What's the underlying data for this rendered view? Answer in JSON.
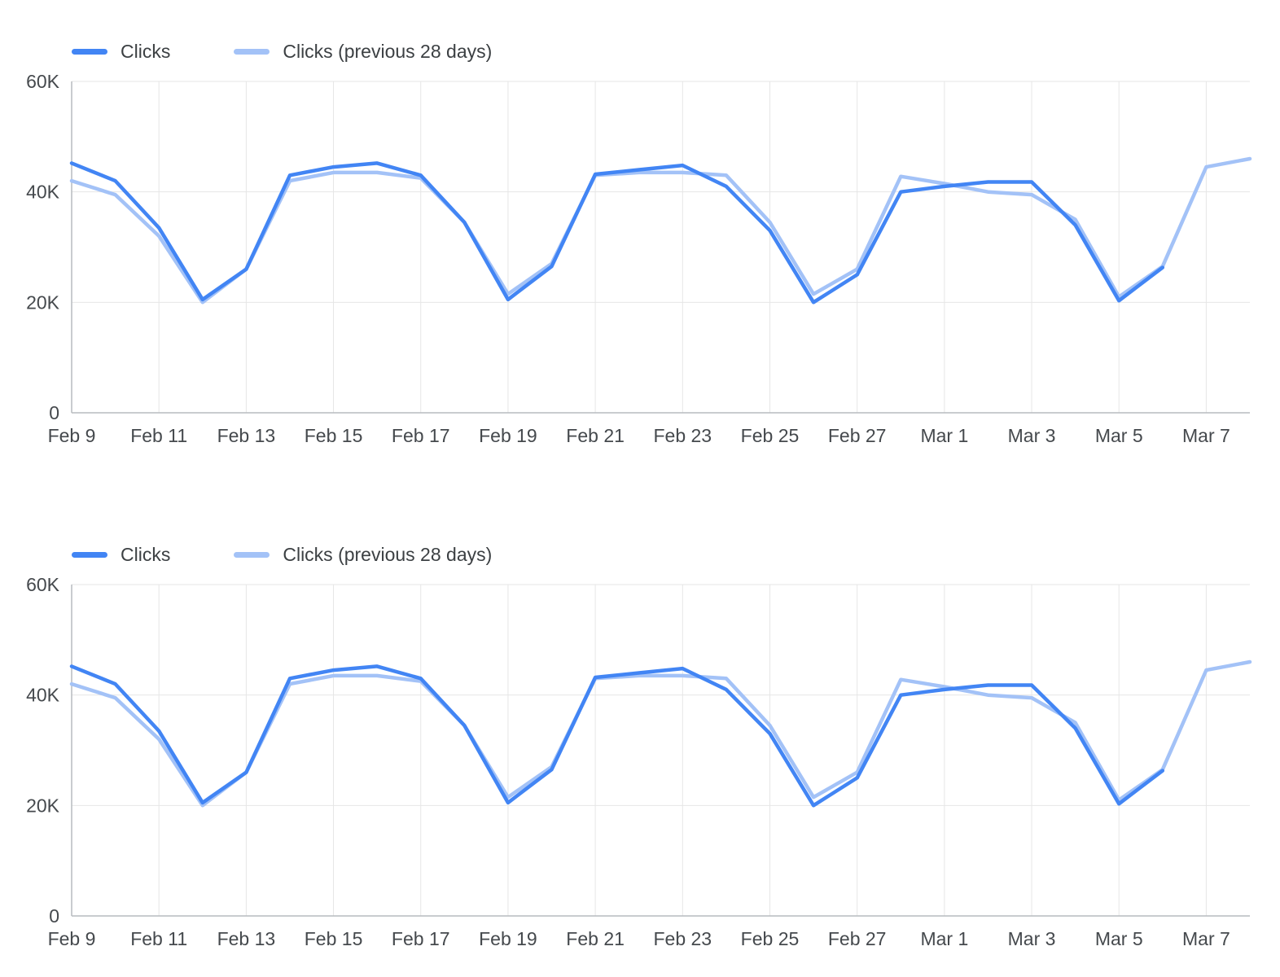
{
  "colors": {
    "clicks": "#4285f4",
    "clicks_previous": "#a3c2f7",
    "grid": "#e6e6e6",
    "axis": "#b7bbbf",
    "axis_text": "#45494d",
    "legend_text": "#3c4043",
    "background": "#ffffff"
  },
  "chart_data": [
    {
      "type": "line",
      "title": "",
      "xlabel": "",
      "ylabel": "",
      "ylim": [
        0,
        60000
      ],
      "grid": true,
      "legend_position": "top-left",
      "x_tick_every": 2,
      "yticks": [
        {
          "value": 0,
          "label": "0"
        },
        {
          "value": 20000,
          "label": "20K"
        },
        {
          "value": 40000,
          "label": "40K"
        },
        {
          "value": 60000,
          "label": "60K"
        }
      ],
      "x": [
        "Feb 9",
        "Feb 10",
        "Feb 11",
        "Feb 12",
        "Feb 13",
        "Feb 14",
        "Feb 15",
        "Feb 16",
        "Feb 17",
        "Feb 18",
        "Feb 19",
        "Feb 20",
        "Feb 21",
        "Feb 22",
        "Feb 23",
        "Feb 24",
        "Feb 25",
        "Feb 26",
        "Feb 27",
        "Feb 28",
        "Mar 1",
        "Mar 2",
        "Mar 3",
        "Mar 4",
        "Mar 5",
        "Mar 6",
        "Mar 7",
        "Mar 8"
      ],
      "series": [
        {
          "key": "clicks",
          "name": "Clicks",
          "color": "#4285f4",
          "values": [
            45200,
            42000,
            33500,
            20500,
            26000,
            43000,
            44500,
            45200,
            43000,
            34500,
            20500,
            26500,
            43200,
            44000,
            44800,
            41000,
            33000,
            20000,
            25000,
            40000,
            41000,
            41800,
            41800,
            34000,
            20300,
            26300,
            null,
            null
          ]
        },
        {
          "key": "clicks-previous",
          "name": "Clicks (previous 28 days)",
          "color": "#a3c2f7",
          "values": [
            42000,
            39500,
            32000,
            20000,
            26000,
            42000,
            43500,
            43500,
            42500,
            34500,
            21500,
            27000,
            43000,
            43500,
            43500,
            43000,
            34500,
            21500,
            26000,
            42800,
            41500,
            40000,
            39500,
            35000,
            21000,
            26500,
            44500,
            46000
          ]
        }
      ]
    },
    {
      "type": "line",
      "title": "",
      "xlabel": "",
      "ylabel": "",
      "ylim": [
        0,
        60000
      ],
      "grid": true,
      "legend_position": "top-left",
      "x_tick_every": 2,
      "yticks": [
        {
          "value": 0,
          "label": "0"
        },
        {
          "value": 20000,
          "label": "20K"
        },
        {
          "value": 40000,
          "label": "40K"
        },
        {
          "value": 60000,
          "label": "60K"
        }
      ],
      "x": [
        "Feb 9",
        "Feb 10",
        "Feb 11",
        "Feb 12",
        "Feb 13",
        "Feb 14",
        "Feb 15",
        "Feb 16",
        "Feb 17",
        "Feb 18",
        "Feb 19",
        "Feb 20",
        "Feb 21",
        "Feb 22",
        "Feb 23",
        "Feb 24",
        "Feb 25",
        "Feb 26",
        "Feb 27",
        "Feb 28",
        "Mar 1",
        "Mar 2",
        "Mar 3",
        "Mar 4",
        "Mar 5",
        "Mar 6",
        "Mar 7",
        "Mar 8"
      ],
      "series": [
        {
          "key": "clicks",
          "name": "Clicks",
          "color": "#4285f4",
          "values": [
            45200,
            42000,
            33500,
            20500,
            26000,
            43000,
            44500,
            45200,
            43000,
            34500,
            20500,
            26500,
            43200,
            44000,
            44800,
            41000,
            33000,
            20000,
            25000,
            40000,
            41000,
            41800,
            41800,
            34000,
            20300,
            26300,
            null,
            null
          ]
        },
        {
          "key": "clicks-previous",
          "name": "Clicks (previous 28 days)",
          "color": "#a3c2f7",
          "values": [
            42000,
            39500,
            32000,
            20000,
            26000,
            42000,
            43500,
            43500,
            42500,
            34500,
            21500,
            27000,
            43000,
            43500,
            43500,
            43000,
            34500,
            21500,
            26000,
            42800,
            41500,
            40000,
            39500,
            35000,
            21000,
            26500,
            44500,
            46000
          ]
        }
      ]
    }
  ]
}
